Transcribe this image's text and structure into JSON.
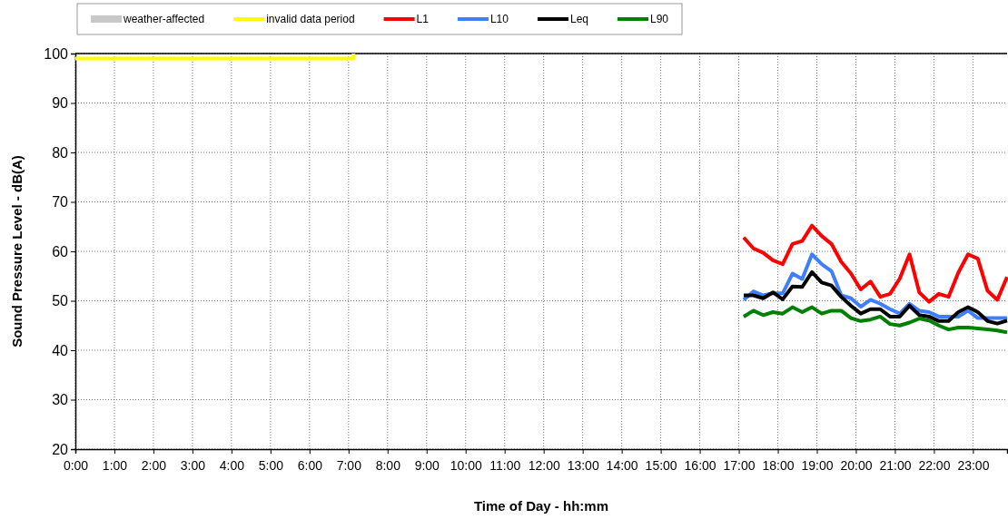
{
  "chart_data": {
    "type": "line",
    "xlabel": "Time of Day - hh:mm",
    "ylabel": "Sound Pressure Level - dB(A)",
    "xlim": [
      0,
      23.875
    ],
    "ylim": [
      20,
      100
    ],
    "xticks": [
      {
        "value": 0,
        "label": "0:00"
      },
      {
        "value": 1,
        "label": "1:00"
      },
      {
        "value": 2,
        "label": "2:00"
      },
      {
        "value": 3,
        "label": "3:00"
      },
      {
        "value": 4,
        "label": "4:00"
      },
      {
        "value": 5,
        "label": "5:00"
      },
      {
        "value": 6,
        "label": "6:00"
      },
      {
        "value": 7,
        "label": "7:00"
      },
      {
        "value": 8,
        "label": "8:00"
      },
      {
        "value": 9,
        "label": "9:00"
      },
      {
        "value": 10,
        "label": "10:00"
      },
      {
        "value": 11,
        "label": "11:00"
      },
      {
        "value": 12,
        "label": "12:00"
      },
      {
        "value": 13,
        "label": "13:00"
      },
      {
        "value": 14,
        "label": "14:00"
      },
      {
        "value": 15,
        "label": "15:00"
      },
      {
        "value": 16,
        "label": "16:00"
      },
      {
        "value": 17,
        "label": "17:00"
      },
      {
        "value": 18,
        "label": "18:00"
      },
      {
        "value": 19,
        "label": "19:00"
      },
      {
        "value": 20,
        "label": "20:00"
      },
      {
        "value": 21,
        "label": "21:00"
      },
      {
        "value": 22,
        "label": "22:00"
      },
      {
        "value": 23,
        "label": "23:00"
      }
    ],
    "yticks": [
      20,
      30,
      40,
      50,
      60,
      70,
      80,
      90,
      100
    ],
    "grid": true,
    "legend": "top",
    "line_style": "solid",
    "marker": "none",
    "x": [
      17.125,
      17.375,
      17.625,
      17.875,
      18.125,
      18.375,
      18.625,
      18.875,
      19.125,
      19.375,
      19.625,
      19.875,
      20.125,
      20.375,
      20.625,
      20.875,
      21.125,
      21.375,
      21.625,
      21.875,
      22.125,
      22.375,
      22.625,
      22.875,
      23.125,
      23.375,
      23.625,
      23.875
    ],
    "series": [
      {
        "name": "weather-affected",
        "type": "area",
        "color": "#c8c8c8",
        "values": [
          null,
          null,
          null,
          null,
          null,
          null,
          null,
          null,
          null,
          null,
          null,
          null,
          null,
          null,
          null,
          null,
          null,
          null,
          null,
          null,
          null,
          null,
          null,
          null,
          null,
          null,
          null,
          null
        ]
      },
      {
        "name": "invalid data period",
        "type": "step",
        "color": "#ffff00",
        "x": [
          0,
          7.125
        ],
        "values": [
          99,
          100
        ]
      },
      {
        "name": "L1",
        "color": "#ff0000",
        "values": [
          62.8,
          60.6,
          59.7,
          58.2,
          57.4,
          61.5,
          62.1,
          65.2,
          63.1,
          61.5,
          57.9,
          55.5,
          52.3,
          53.9,
          50.8,
          51.4,
          54.5,
          59.4,
          51.7,
          49.8,
          51.4,
          50.8,
          55.7,
          59.4,
          58.5,
          52.0,
          50.2,
          54.8
        ]
      },
      {
        "name": "L10",
        "color": "#3f7fff",
        "values": [
          50.2,
          51.9,
          51.1,
          51.5,
          51.5,
          55.5,
          54.4,
          59.4,
          57.4,
          56.0,
          51.1,
          50.5,
          48.8,
          50.2,
          49.4,
          48.3,
          47.4,
          49.4,
          48.0,
          47.7,
          46.8,
          46.8,
          46.8,
          48.0,
          46.5,
          46.5,
          46.5,
          46.5
        ]
      },
      {
        "name": "Leq",
        "color": "#000000",
        "values": [
          51.1,
          51.1,
          50.5,
          51.7,
          50.3,
          52.9,
          52.8,
          55.8,
          53.7,
          53.1,
          50.8,
          49.0,
          47.4,
          48.3,
          48.3,
          46.8,
          46.8,
          49.0,
          47.1,
          46.8,
          45.9,
          45.9,
          47.7,
          48.7,
          47.7,
          45.9,
          45.4,
          46.0
        ]
      },
      {
        "name": "L90",
        "color": "#008000",
        "values": [
          46.8,
          48.0,
          47.1,
          47.7,
          47.4,
          48.7,
          47.7,
          48.7,
          47.4,
          48.0,
          48.0,
          46.5,
          45.9,
          46.2,
          46.8,
          45.3,
          45.0,
          45.6,
          46.4,
          46.0,
          45.0,
          44.2,
          44.6,
          44.6,
          44.4,
          44.2,
          44.0,
          43.6
        ]
      }
    ]
  }
}
